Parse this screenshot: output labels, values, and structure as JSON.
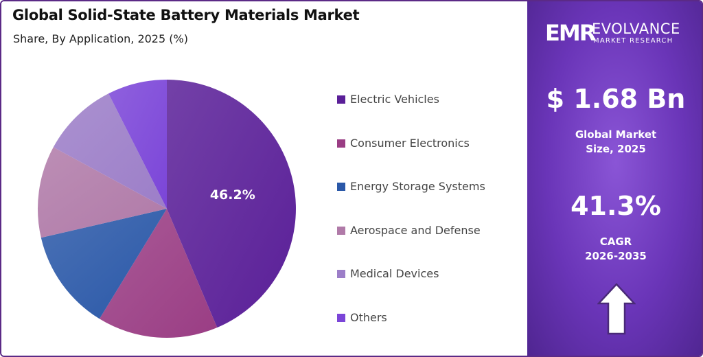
{
  "chart_data": {
    "type": "pie",
    "title": "Global Solid-State Battery Materials Market",
    "subtitle": "Share, By Application, 2025 (%)",
    "categories": [
      "Electric Vehicles",
      "Consumer Electronics",
      "Energy Storage Systems",
      "Aerospace and Defense",
      "Medical Devices",
      "Others"
    ],
    "values": [
      46.2,
      16.0,
      13.4,
      12.2,
      10.2,
      7.9
    ],
    "data_labels": [
      "46.2%",
      "",
      "",
      "",
      "",
      ""
    ],
    "colors": [
      "#5a1f98",
      "#9a3d84",
      "#2a58a8",
      "#b07aa8",
      "#9c7ec8",
      "#7b45d8"
    ],
    "legend_position": "right"
  },
  "summary": {
    "market_value": "$ 1.68 Bn",
    "market_label_line1": "Global Market",
    "market_label_line2": "Size, 2025",
    "cagr_value": "41.3%",
    "cagr_label_line1": "CAGR",
    "cagr_label_line2": "2026-2035",
    "trend_icon": "up-arrow-icon"
  },
  "brand": {
    "mark": "EMR",
    "name": "EVOLVANCE",
    "tagline": "MARKET RESEARCH",
    "accent_color": "#6a35b8"
  }
}
